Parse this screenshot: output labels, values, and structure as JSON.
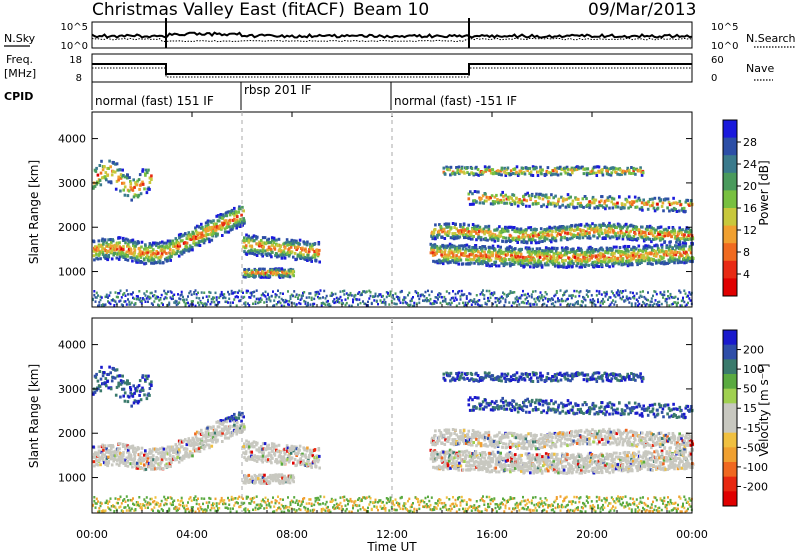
{
  "header": {
    "radar": "Christmas Valley East (fitACF)",
    "beam": "Beam 10",
    "date": "09/Mar/2013"
  },
  "params": {
    "nsky_label": "N.Sky",
    "nsearch_label": "N.Search",
    "freq_label_1": "Freq.",
    "freq_label_2": "[MHz]",
    "nave_label": "Nave",
    "cpid_label": "CPID",
    "nsky_ticks": [
      "10^5",
      "10^0"
    ],
    "nsearch_ticks": [
      "10^5",
      "10^0"
    ],
    "freq_ticks": [
      "18",
      "8"
    ],
    "nave_ticks": [
      "60",
      "0"
    ],
    "cpid_modes": [
      {
        "label": "normal (fast) 151 IF",
        "start_hour": 0
      },
      {
        "label": "rbsp 201 IF",
        "start_hour": 6
      },
      {
        "label": "normal (fast) -151 IF",
        "start_hour": 12
      }
    ]
  },
  "chart_data": [
    {
      "type": "heatmap",
      "name": "power",
      "ylabel": "Slant Range [km]",
      "yticks": [
        1000,
        2000,
        3000,
        4000
      ],
      "ylim": [
        200,
        4600
      ],
      "colorbar": {
        "label": "Power [dB]",
        "ticks": [
          "4",
          "8",
          "12",
          "16",
          "20",
          "24",
          "28"
        ],
        "colors": [
          "#1a1adc",
          "#2c4ea6",
          "#3a7a8c",
          "#4a9a5c",
          "#78c040",
          "#c8c83c",
          "#f0a030",
          "#f06a20",
          "#e82a14",
          "#e00000"
        ]
      }
    },
    {
      "type": "heatmap",
      "name": "velocity",
      "ylabel": "Slant Range [km]",
      "yticks": [
        1000,
        2000,
        3000,
        4000
      ],
      "ylim": [
        200,
        4600
      ],
      "colorbar": {
        "label": "Velocity [m s⁻¹]",
        "ticks": [
          "200",
          "100",
          "50",
          "15",
          "-15",
          "-50",
          "-100",
          "-200"
        ],
        "colors": [
          "#1a1acc",
          "#2f4ea8",
          "#3a7a6c",
          "#5aaa40",
          "#a0d050",
          "#c8c8c0",
          "#c8c8c0",
          "#f0c040",
          "#f0a030",
          "#f06820",
          "#e82810",
          "#e00000"
        ]
      }
    }
  ],
  "xaxis": {
    "label": "Time UT",
    "ticks": [
      "00:00",
      "04:00",
      "08:00",
      "12:00",
      "16:00",
      "20:00",
      "00:00"
    ],
    "range_hours": [
      0,
      24
    ]
  }
}
